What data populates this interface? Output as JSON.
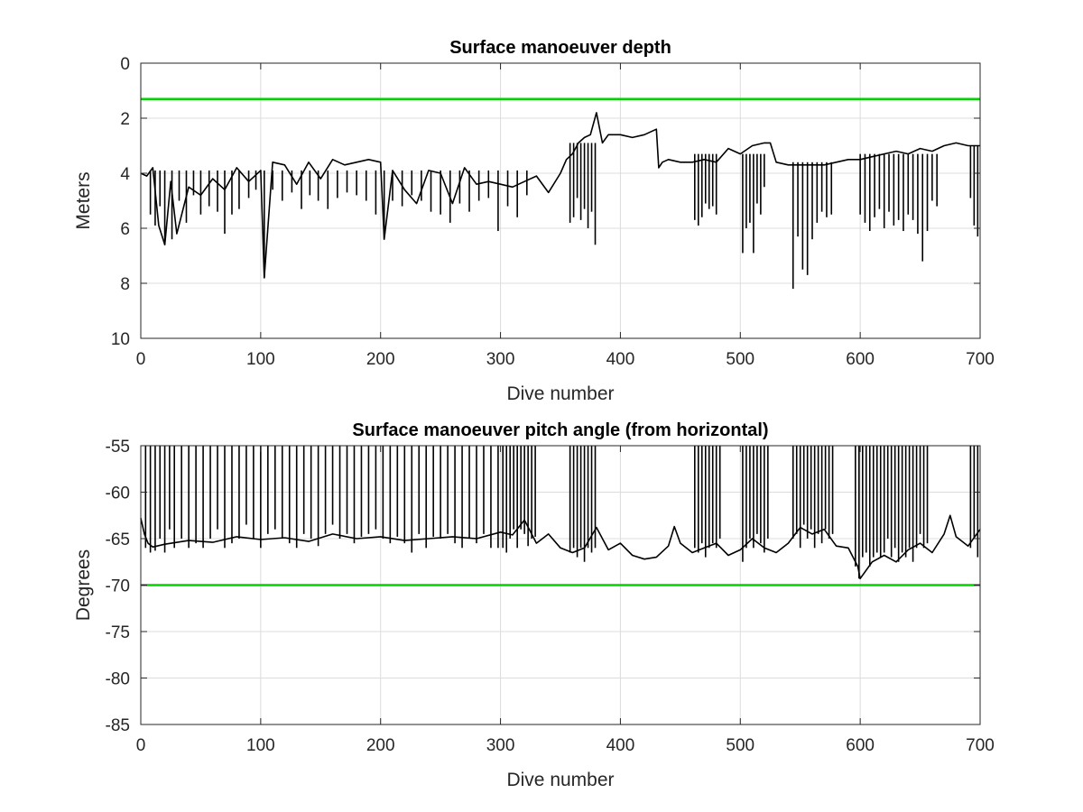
{
  "chart_data": [
    {
      "type": "line",
      "title": "Surface manoeuver depth",
      "xlabel": "Dive number",
      "ylabel": "Meters",
      "xlim": [
        0,
        700
      ],
      "ylim": [
        0,
        10
      ],
      "y_reversed": true,
      "x_ticks": [
        0,
        100,
        200,
        300,
        400,
        500,
        600,
        700
      ],
      "y_ticks": [
        0,
        2,
        4,
        6,
        8,
        10
      ],
      "grid": true,
      "series": [
        {
          "color": "#000000",
          "style": "line",
          "x": [
            0,
            5,
            10,
            15,
            20,
            25,
            30,
            40,
            50,
            60,
            70,
            80,
            90,
            100,
            103,
            110,
            120,
            130,
            140,
            150,
            160,
            170,
            180,
            190,
            200,
            203,
            210,
            220,
            230,
            240,
            250,
            260,
            270,
            280,
            290,
            300,
            310,
            320,
            330,
            340,
            350,
            355,
            360,
            365,
            370,
            375,
            380,
            385,
            390,
            400,
            410,
            420,
            430,
            432,
            435,
            440,
            450,
            460,
            470,
            480,
            490,
            500,
            510,
            520,
            525,
            530,
            540,
            550,
            560,
            570,
            580,
            590,
            600,
            610,
            620,
            630,
            640,
            650,
            660,
            670,
            680,
            690,
            700
          ],
          "values": [
            4.0,
            4.1,
            3.8,
            5.9,
            6.6,
            4.3,
            6.2,
            4.5,
            4.8,
            4.2,
            4.6,
            3.8,
            4.3,
            3.9,
            7.8,
            3.6,
            3.7,
            4.4,
            3.6,
            4.2,
            3.5,
            3.7,
            3.6,
            3.5,
            3.6,
            6.4,
            3.9,
            4.6,
            5.1,
            3.9,
            4.0,
            5.1,
            3.8,
            4.4,
            4.3,
            4.4,
            4.5,
            4.3,
            4.1,
            4.7,
            4.0,
            3.5,
            3.3,
            2.9,
            2.7,
            2.6,
            1.8,
            2.9,
            2.6,
            2.6,
            2.7,
            2.6,
            2.4,
            3.8,
            3.6,
            3.5,
            3.6,
            3.6,
            3.5,
            3.6,
            3.1,
            3.3,
            3.0,
            2.9,
            2.9,
            3.6,
            3.7,
            3.7,
            3.7,
            3.7,
            3.6,
            3.5,
            3.5,
            3.4,
            3.3,
            3.2,
            3.3,
            3.1,
            3.2,
            3.0,
            2.9,
            3.0,
            3.0
          ]
        },
        {
          "color": "#000000",
          "style": "spikes",
          "x": [
            8,
            12,
            16,
            20,
            26,
            32,
            38,
            44,
            50,
            57,
            64,
            70,
            76,
            82,
            90,
            96,
            103,
            110,
            118,
            126,
            134,
            141,
            148,
            156,
            164,
            172,
            180,
            188,
            196,
            203,
            210,
            218,
            226,
            234,
            242,
            250,
            258,
            266,
            274,
            282,
            290,
            298,
            306,
            314,
            322,
            358,
            361,
            364,
            367,
            370,
            373,
            376,
            379,
            462,
            465,
            468,
            471,
            474,
            477,
            480,
            502,
            505,
            508,
            511,
            514,
            517,
            520,
            544,
            548,
            552,
            556,
            560,
            564,
            568,
            572,
            576,
            600,
            604,
            608,
            612,
            616,
            620,
            624,
            628,
            632,
            636,
            640,
            644,
            648,
            652,
            656,
            660,
            664,
            692,
            695,
            698
          ],
          "values": [
            5.5,
            5.9,
            5.2,
            6.6,
            6.4,
            5.0,
            5.8,
            4.8,
            5.5,
            5.2,
            5.4,
            6.2,
            5.5,
            5.3,
            4.9,
            4.6,
            7.8,
            4.6,
            5.0,
            4.7,
            5.3,
            4.8,
            5.0,
            5.3,
            4.9,
            4.7,
            4.8,
            5.0,
            5.5,
            6.4,
            5.0,
            5.2,
            4.8,
            5.0,
            5.4,
            5.5,
            5.8,
            5.1,
            5.4,
            5.0,
            4.9,
            6.1,
            5.2,
            5.6,
            4.8,
            5.8,
            5.6,
            4.9,
            5.7,
            5.3,
            6.0,
            5.4,
            6.6,
            5.7,
            5.9,
            5.6,
            5.1,
            5.3,
            5.2,
            5.5,
            6.9,
            6.0,
            5.8,
            6.9,
            5.1,
            5.5,
            4.5,
            8.2,
            6.3,
            7.5,
            7.7,
            6.4,
            5.8,
            5.4,
            5.6,
            5.5,
            5.5,
            5.8,
            6.1,
            5.6,
            5.3,
            6.0,
            5.4,
            5.9,
            5.7,
            6.1,
            5.5,
            5.7,
            6.2,
            7.2,
            6.1,
            5.0,
            5.2,
            4.9,
            5.9,
            6.3
          ]
        },
        {
          "color": "#00d400",
          "style": "line",
          "x": [
            0,
            700
          ],
          "values": [
            1.3,
            1.3
          ]
        }
      ]
    },
    {
      "type": "line",
      "title": "Surface manoeuver pitch angle (from horizontal)",
      "xlabel": "Dive number",
      "ylabel": "Degrees",
      "xlim": [
        0,
        700
      ],
      "ylim": [
        -85,
        -55
      ],
      "x_ticks": [
        0,
        100,
        200,
        300,
        400,
        500,
        600,
        700
      ],
      "y_ticks": [
        -55,
        -60,
        -65,
        -70,
        -75,
        -80,
        -85
      ],
      "grid": true,
      "series": [
        {
          "color": "#000000",
          "style": "line",
          "x": [
            0,
            3,
            6,
            10,
            20,
            40,
            60,
            80,
            100,
            120,
            140,
            160,
            180,
            200,
            220,
            240,
            260,
            280,
            300,
            310,
            320,
            330,
            340,
            350,
            360,
            370,
            380,
            390,
            400,
            410,
            420,
            430,
            440,
            445,
            450,
            460,
            470,
            480,
            490,
            500,
            510,
            520,
            530,
            540,
            550,
            560,
            570,
            580,
            590,
            598,
            600,
            610,
            620,
            630,
            640,
            650,
            660,
            670,
            675,
            680,
            690,
            700
          ],
          "values": [
            -62.8,
            -64.5,
            -65.5,
            -65.9,
            -65.6,
            -65.2,
            -65.4,
            -64.8,
            -65.1,
            -64.9,
            -65.3,
            -64.5,
            -65.0,
            -64.8,
            -65.2,
            -65.0,
            -64.8,
            -65.0,
            -64.3,
            -64.6,
            -63.0,
            -65.5,
            -64.5,
            -66.0,
            -66.5,
            -66.0,
            -63.8,
            -66.2,
            -65.5,
            -66.8,
            -67.2,
            -67.0,
            -65.8,
            -63.7,
            -65.5,
            -66.5,
            -66.0,
            -65.5,
            -66.8,
            -66.2,
            -65.0,
            -66.0,
            -66.5,
            -65.5,
            -63.8,
            -64.5,
            -64.0,
            -65.8,
            -66.0,
            -68.0,
            -69.3,
            -67.5,
            -66.8,
            -67.5,
            -66.2,
            -65.5,
            -66.5,
            -64.5,
            -62.5,
            -64.8,
            -65.8,
            -64.0
          ]
        },
        {
          "color": "#000000",
          "style": "spikes",
          "x": [
            4,
            8,
            12,
            16,
            20,
            24,
            28,
            34,
            40,
            46,
            52,
            58,
            64,
            70,
            76,
            82,
            88,
            94,
            100,
            106,
            112,
            118,
            124,
            130,
            136,
            142,
            148,
            154,
            160,
            166,
            172,
            178,
            184,
            190,
            196,
            202,
            208,
            214,
            220,
            226,
            232,
            238,
            244,
            250,
            256,
            262,
            268,
            274,
            280,
            286,
            292,
            298,
            302,
            305,
            308,
            311,
            314,
            317,
            320,
            323,
            326,
            329,
            358,
            361,
            364,
            367,
            370,
            373,
            376,
            379,
            462,
            465,
            468,
            471,
            474,
            477,
            480,
            483,
            502,
            505,
            508,
            511,
            514,
            517,
            520,
            523,
            544,
            547,
            550,
            553,
            556,
            559,
            562,
            565,
            568,
            571,
            574,
            577,
            596,
            599,
            602,
            605,
            608,
            611,
            614,
            617,
            620,
            623,
            626,
            629,
            632,
            635,
            638,
            641,
            644,
            647,
            650,
            653,
            656,
            692,
            695,
            698
          ],
          "values": [
            -66.0,
            -66.5,
            -66.3,
            -65.0,
            -66.5,
            -64.0,
            -66.0,
            -65.0,
            -66.0,
            -65.5,
            -66.0,
            -65.0,
            -64.0,
            -66.0,
            -65.5,
            -65.0,
            -63.5,
            -65.0,
            -66.0,
            -64.5,
            -64.0,
            -65.0,
            -65.5,
            -66.0,
            -64.5,
            -65.0,
            -65.8,
            -64.5,
            -63.5,
            -65.0,
            -64.5,
            -65.5,
            -64.8,
            -64.5,
            -64.0,
            -65.0,
            -65.5,
            -64.8,
            -65.5,
            -66.5,
            -64.5,
            -66.0,
            -64.8,
            -65.0,
            -64.5,
            -65.5,
            -66.0,
            -65.0,
            -65.5,
            -64.5,
            -66.0,
            -66.0,
            -66.0,
            -66.5,
            -65.0,
            -64.0,
            -66.0,
            -64.0,
            -64.5,
            -65.8,
            -65.0,
            -64.8,
            -66.5,
            -66.0,
            -67.0,
            -66.0,
            -67.5,
            -66.0,
            -66.5,
            -66.0,
            -66.0,
            -66.5,
            -65.5,
            -67.0,
            -66.0,
            -65.5,
            -66.0,
            -65.0,
            -67.5,
            -66.0,
            -65.0,
            -66.0,
            -64.5,
            -65.5,
            -66.5,
            -65.0,
            -65.0,
            -64.5,
            -66.0,
            -63.5,
            -65.0,
            -64.0,
            -66.0,
            -64.5,
            -65.5,
            -64.0,
            -65.0,
            -64.5,
            -68.0,
            -69.3,
            -67.0,
            -66.5,
            -68.0,
            -67.0,
            -66.5,
            -67.0,
            -66.5,
            -65.0,
            -67.0,
            -66.0,
            -67.5,
            -66.5,
            -67.0,
            -66.0,
            -67.5,
            -66.0,
            -64.5,
            -66.0,
            -65.5,
            -66.0,
            -65.0,
            -67.0
          ]
        },
        {
          "color": "#00d400",
          "style": "line",
          "x": [
            0,
            700
          ],
          "values": [
            -70,
            -70
          ]
        }
      ]
    }
  ]
}
